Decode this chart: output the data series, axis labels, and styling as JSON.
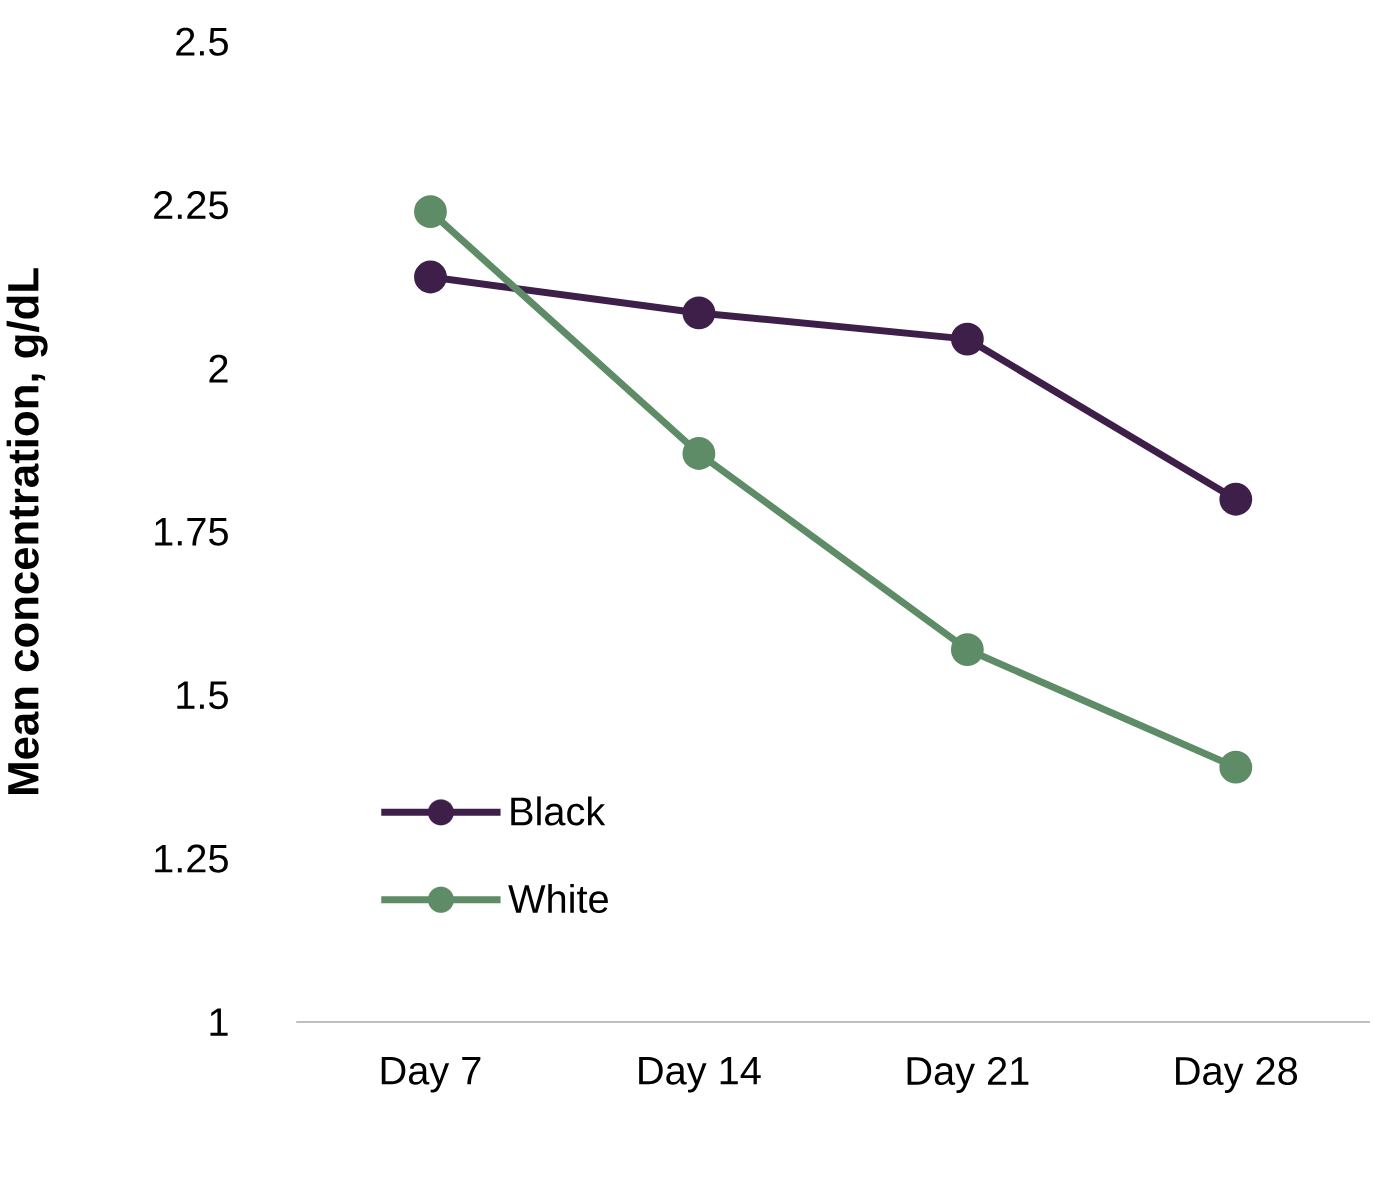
{
  "chart_data": {
    "type": "line",
    "ylabel": "Mean concentration, g/dL",
    "categories": [
      "Day 7",
      "Day 14",
      "Day 21",
      "Day 28"
    ],
    "series": [
      {
        "name": "Black",
        "color": "#3d1f4a",
        "values": [
          2.14,
          2.085,
          2.045,
          1.8
        ]
      },
      {
        "name": "White",
        "color": "#5e8c66",
        "values": [
          2.24,
          1.87,
          1.57,
          1.39
        ]
      }
    ],
    "ylim": [
      1,
      2.5
    ],
    "yticks": [
      1,
      1.25,
      1.5,
      1.75,
      2,
      2.25,
      2.5
    ],
    "grid": false,
    "legend": "bottom left",
    "marker": "circle",
    "line_style": "solid"
  }
}
